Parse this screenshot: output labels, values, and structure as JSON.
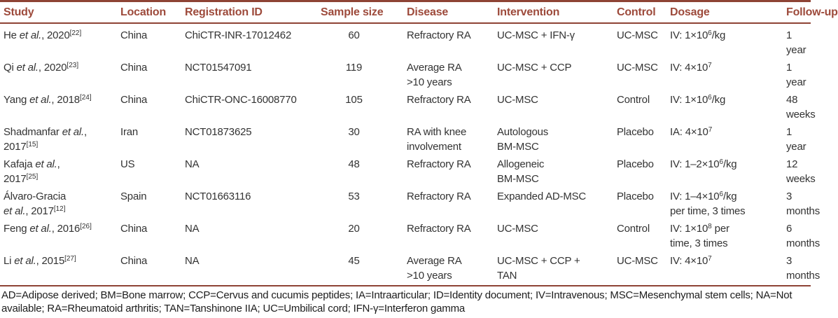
{
  "colors": {
    "header_text": "#9d4a3b",
    "rule": "#8e4335",
    "body_text": "#333333",
    "footnote_text": "#1d1d1d",
    "background": "#ffffff"
  },
  "table": {
    "columns": [
      {
        "key": "study",
        "label": "Study"
      },
      {
        "key": "location",
        "label": "Location"
      },
      {
        "key": "registration_id",
        "label": "Registration ID"
      },
      {
        "key": "sample_size",
        "label": "Sample size"
      },
      {
        "key": "disease",
        "label": "Disease"
      },
      {
        "key": "intervention",
        "label": "Intervention"
      },
      {
        "key": "control",
        "label": "Control"
      },
      {
        "key": "dosage",
        "label": "Dosage"
      },
      {
        "key": "follow_up",
        "label": "Follow-up"
      }
    ],
    "rows": [
      {
        "study": [
          {
            "t": "He "
          },
          {
            "t": "et al.",
            "i": true
          },
          {
            "t": ", 2020"
          },
          {
            "t": "[22]",
            "sup": true
          }
        ],
        "location": "China",
        "registration_id": "ChiCTR-INR-17012462",
        "sample_size": "60",
        "disease": "Refractory RA",
        "intervention": "UC-MSC + IFN-γ",
        "control": "UC-MSC",
        "dosage": [
          {
            "t": "IV: 1×10"
          },
          {
            "t": "6",
            "sup": true
          },
          {
            "t": "/kg"
          }
        ],
        "follow_up": "1 year"
      },
      {
        "study": [
          {
            "t": "Qi "
          },
          {
            "t": "et al.",
            "i": true
          },
          {
            "t": ", 2020"
          },
          {
            "t": "[23]",
            "sup": true
          }
        ],
        "location": "China",
        "registration_id": "NCT01547091",
        "sample_size": "119",
        "disease": "Average RA\n>10 years",
        "intervention": "UC-MSC + CCP",
        "control": "UC-MSC",
        "dosage": [
          {
            "t": "IV: 4×10"
          },
          {
            "t": "7",
            "sup": true
          }
        ],
        "follow_up": "1 year"
      },
      {
        "study": [
          {
            "t": "Yang "
          },
          {
            "t": "et al.",
            "i": true
          },
          {
            "t": ", 2018"
          },
          {
            "t": "[24]",
            "sup": true
          }
        ],
        "location": "China",
        "registration_id": "ChiCTR-ONC-16008770",
        "sample_size": "105",
        "disease": "Refractory RA",
        "intervention": "UC-MSC",
        "control": "Control",
        "dosage": [
          {
            "t": "IV: 1×10"
          },
          {
            "t": "6",
            "sup": true
          },
          {
            "t": "/kg"
          }
        ],
        "follow_up": "48 weeks"
      },
      {
        "study": [
          {
            "t": "Shadmanfar "
          },
          {
            "t": "et al.",
            "i": true
          },
          {
            "t": ",\n2017"
          },
          {
            "t": "[15]",
            "sup": true
          }
        ],
        "location": "Iran",
        "registration_id": "NCT01873625",
        "sample_size": "30",
        "disease": "RA with knee\ninvolvement",
        "intervention": "Autologous\nBM-MSC",
        "control": "Placebo",
        "dosage": [
          {
            "t": "IA: 4×10"
          },
          {
            "t": "7",
            "sup": true
          }
        ],
        "follow_up": "1 year"
      },
      {
        "study": [
          {
            "t": "Kafaja "
          },
          {
            "t": "et al.",
            "i": true
          },
          {
            "t": ",\n2017"
          },
          {
            "t": "[25]",
            "sup": true
          }
        ],
        "location": "US",
        "registration_id": "NA",
        "sample_size": "48",
        "disease": "Refractory RA",
        "intervention": "Allogeneic\nBM-MSC",
        "control": "Placebo",
        "dosage": [
          {
            "t": "IV: 1–2×10"
          },
          {
            "t": "6",
            "sup": true
          },
          {
            "t": "/kg"
          }
        ],
        "follow_up": "12 weeks"
      },
      {
        "study": [
          {
            "t": "Álvaro-Gracia\n"
          },
          {
            "t": "et al.",
            "i": true
          },
          {
            "t": ", 2017"
          },
          {
            "t": "[12]",
            "sup": true
          }
        ],
        "location": "Spain",
        "registration_id": "NCT01663116",
        "sample_size": "53",
        "disease": "Refractory RA",
        "intervention": "Expanded AD-MSC",
        "control": "Placebo",
        "dosage": [
          {
            "t": "IV: 1–4×10"
          },
          {
            "t": "6",
            "sup": true
          },
          {
            "t": "/kg\nper time, 3 times"
          }
        ],
        "follow_up": "3 months"
      },
      {
        "study": [
          {
            "t": "Feng "
          },
          {
            "t": "et al.",
            "i": true
          },
          {
            "t": ", 2016"
          },
          {
            "t": "[26]",
            "sup": true
          }
        ],
        "location": "China",
        "registration_id": "NA",
        "sample_size": "20",
        "disease": "Refractory RA",
        "intervention": "UC-MSC",
        "control": "Control",
        "dosage": [
          {
            "t": "IV: 1×10"
          },
          {
            "t": "8",
            "sup": true
          },
          {
            "t": " per\ntime, 3 times"
          }
        ],
        "follow_up": "6 months"
      },
      {
        "study": [
          {
            "t": "Li "
          },
          {
            "t": "et al.",
            "i": true
          },
          {
            "t": ", 2015"
          },
          {
            "t": "[27]",
            "sup": true
          }
        ],
        "location": "China",
        "registration_id": "NA",
        "sample_size": "45",
        "disease": "Average RA\n>10 years",
        "intervention": "UC-MSC + CCP +\nTAN",
        "control": "UC-MSC",
        "dosage": [
          {
            "t": "IV: 4×10"
          },
          {
            "t": "7",
            "sup": true
          }
        ],
        "follow_up": "3 months"
      }
    ]
  },
  "footnote": "AD=Adipose derived; BM=Bone marrow; CCP=Cervus and cucumis peptides; IA=Intraarticular; ID=Identity document; IV=Intravenous; MSC=Mesenchymal stem cells; NA=Not\navailable; RA=Rheumatoid arthritis; TAN=Tanshinone IIA; UC=Umbilical cord; IFN-γ=Interferon gamma"
}
